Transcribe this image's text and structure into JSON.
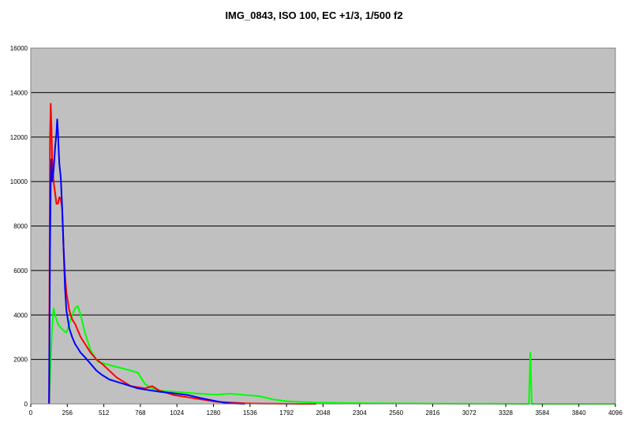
{
  "chart_data": {
    "type": "line",
    "title": "IMG_0843, ISO 100, EC +1/3, 1/500 f2",
    "xlabel": "",
    "ylabel": "",
    "xlim": [
      0,
      4096
    ],
    "ylim": [
      0,
      16000
    ],
    "x_ticks": [
      0,
      256,
      512,
      768,
      1024,
      1280,
      1536,
      1792,
      2048,
      2304,
      2560,
      2816,
      3072,
      3328,
      3584,
      3840,
      4096
    ],
    "y_ticks": [
      0,
      2000,
      4000,
      6000,
      8000,
      10000,
      12000,
      14000,
      16000
    ],
    "grid": "horizontal",
    "legend": "none",
    "plot_background": "#c0c0c0",
    "series": [
      {
        "color": "#00ff00",
        "x": [
          128,
          140,
          150,
          160,
          170,
          180,
          190,
          200,
          215,
          230,
          250,
          270,
          290,
          310,
          330,
          350,
          380,
          420,
          470,
          520,
          580,
          640,
          700,
          750,
          800,
          850,
          900,
          1000,
          1100,
          1200,
          1300,
          1400,
          1500,
          1600,
          1700,
          1800,
          1900,
          2000,
          2200,
          2400,
          2600,
          2800,
          3000,
          3200,
          3400,
          3490,
          3500,
          3510,
          3600,
          4096
        ],
        "y": [
          0,
          2000,
          3500,
          4300,
          4000,
          3800,
          3600,
          3500,
          3400,
          3300,
          3200,
          3600,
          4000,
          4300,
          4400,
          4000,
          3200,
          2400,
          1900,
          1800,
          1700,
          1600,
          1500,
          1400,
          900,
          700,
          600,
          550,
          500,
          450,
          420,
          460,
          400,
          350,
          200,
          120,
          90,
          60,
          40,
          30,
          20,
          15,
          10,
          8,
          5,
          0,
          2300,
          0,
          0,
          0
        ]
      },
      {
        "color": "#ff0000",
        "x": [
          128,
          135,
          140,
          145,
          150,
          160,
          170,
          180,
          190,
          200,
          210,
          220,
          230,
          240,
          250,
          270,
          290,
          310,
          330,
          350,
          380,
          420,
          460,
          500,
          550,
          600,
          650,
          700,
          750,
          800,
          850,
          900,
          1000,
          1100,
          1200,
          1300,
          1400,
          1500,
          1600,
          1800,
          2000
        ],
        "y": [
          0,
          12000,
          13500,
          12500,
          11000,
          10000,
          9500,
          9000,
          9000,
          9300,
          9200,
          8800,
          7000,
          5800,
          5000,
          4200,
          3800,
          3600,
          3300,
          3000,
          2700,
          2300,
          2000,
          1800,
          1500,
          1200,
          1000,
          800,
          750,
          700,
          800,
          600,
          400,
          300,
          200,
          100,
          60,
          30,
          15,
          5,
          0
        ]
      },
      {
        "color": "#0000ff",
        "x": [
          128,
          135,
          140,
          145,
          150,
          160,
          170,
          180,
          185,
          190,
          195,
          200,
          210,
          220,
          230,
          240,
          250,
          270,
          290,
          310,
          330,
          350,
          380,
          420,
          460,
          500,
          550,
          600,
          650,
          700,
          750,
          800,
          850,
          900,
          1000,
          1100,
          1200,
          1280,
          1350,
          1400,
          1500
        ],
        "y": [
          0,
          7000,
          10000,
          11000,
          10000,
          10500,
          11500,
          12200,
          12800,
          12300,
          11500,
          10800,
          10200,
          8800,
          7000,
          5200,
          4200,
          3400,
          3000,
          2700,
          2500,
          2300,
          2100,
          1800,
          1500,
          1300,
          1100,
          1000,
          900,
          800,
          700,
          650,
          600,
          550,
          480,
          400,
          250,
          150,
          60,
          20,
          0
        ]
      }
    ]
  }
}
